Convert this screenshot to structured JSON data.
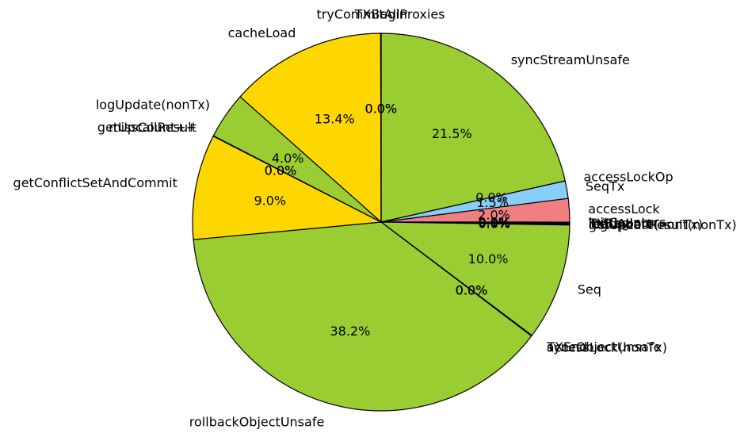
{
  "chart_data": {
    "type": "pie",
    "title": "",
    "start_angle_deg": 90,
    "direction": "clockwise",
    "slices": [
      {
        "label": "syncStreamUnsafe",
        "value": 21.5,
        "pct_label": "21.5%",
        "color": "#9acd32"
      },
      {
        "label": "accessLockOp",
        "value": 0.0,
        "pct_label": "0.0%",
        "color": "#9acd32"
      },
      {
        "label": "SeqTx",
        "value": 1.5,
        "pct_label": "1.5%",
        "color": "#87cefa"
      },
      {
        "label": "accessLock",
        "value": 2.0,
        "pct_label": "2.0%",
        "color": "#f08080"
      },
      {
        "label": "initCounters",
        "value": 0.05,
        "pct_label": "0.1%",
        "color": "#9acd32"
      },
      {
        "label": "TXBegin",
        "value": 0.05,
        "pct_label": "0.0%",
        "color": "#9acd32"
      },
      {
        "label": "readAbort",
        "value": 0.05,
        "pct_label": "0.1%",
        "color": "#9acd32"
      },
      {
        "label": "logUpdate(nonTx)",
        "value": 0.05,
        "pct_label": "0.0%",
        "color": "#9acd32"
      },
      {
        "label": "getUpcallResult(nonTx)",
        "value": 0.05,
        "pct_label": "0.0%",
        "color": "#9acd32"
      },
      {
        "label": "Seq",
        "value": 10.0,
        "pct_label": "10.0%",
        "color": "#9acd32"
      },
      {
        "label": "TXEnd",
        "value": 0.02,
        "pct_label": "0.0%",
        "color": "#9acd32"
      },
      {
        "label": "syncObjectUnsafe",
        "value": 0.02,
        "pct_label": "0.0%",
        "color": "#9acd32"
      },
      {
        "label": "accessLock(nonTx)",
        "value": 0.02,
        "pct_label": "0.0%",
        "color": "#9acd32"
      },
      {
        "label": "rollbackObjectUnsafe",
        "value": 38.2,
        "pct_label": "38.2%",
        "color": "#9acd32"
      },
      {
        "label": "getConflictSetAndCommit",
        "value": 9.0,
        "pct_label": "9.0%",
        "color": "#ffd700"
      },
      {
        "label": "getUpcallResult",
        "value": 0.02,
        "pct_label": "0.0%",
        "color": "#9acd32"
      },
      {
        "label": "missCount++",
        "value": 0.02,
        "pct_label": "0.0%",
        "color": "#9acd32"
      },
      {
        "label": "logUpdate(nonTx)",
        "value": 4.0,
        "pct_label": "4.0%",
        "color": "#9acd32"
      },
      {
        "label": "cacheLoad",
        "value": 13.4,
        "pct_label": "13.4%",
        "color": "#ffd700"
      },
      {
        "label": "tryCommitAllProxies",
        "value": 0.02,
        "pct_label": "0.0%",
        "color": "#ffd700"
      },
      {
        "label": "TXBegin",
        "value": 0.02,
        "pct_label": "0.0%",
        "color": "#9acd32"
      }
    ]
  }
}
